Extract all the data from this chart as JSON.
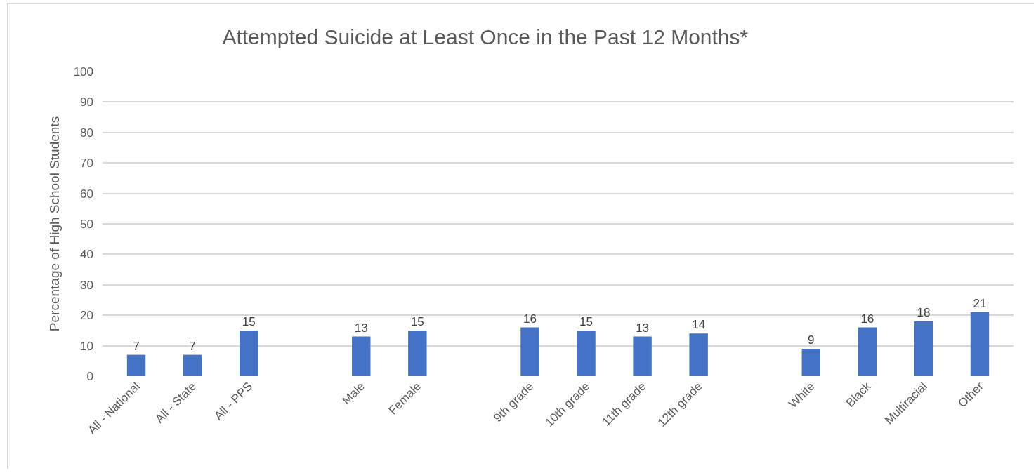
{
  "chart_data": {
    "type": "bar",
    "title": "Attempted Suicide at Least Once in the Past 12 Months*",
    "ylabel": "Percentage of High School Students",
    "categories": [
      "All - National",
      "All - State",
      "All - PPS",
      null,
      "Male",
      "Female",
      null,
      "9th grade",
      "10th grade",
      "11th grade",
      "12th grade",
      null,
      "White",
      "Black",
      "Multiracial",
      "Other"
    ],
    "values": [
      7,
      7,
      15,
      null,
      13,
      15,
      null,
      16,
      15,
      13,
      14,
      null,
      9,
      16,
      18,
      21
    ],
    "color": "#4472c4",
    "ylim": [
      0,
      100
    ],
    "yticks": [
      0,
      10,
      20,
      30,
      40,
      50,
      60,
      70,
      80,
      90,
      100
    ],
    "grid": "y",
    "data_labels": true,
    "legend": false
  }
}
